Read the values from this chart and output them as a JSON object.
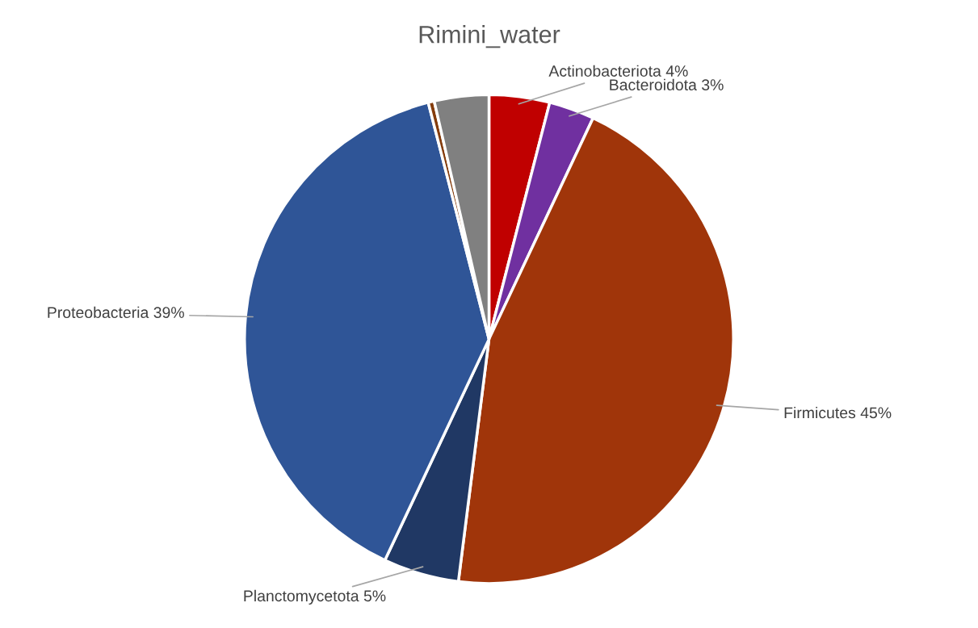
{
  "chart_data": {
    "type": "pie",
    "title": "Rimini_water",
    "categories": [
      "Actinobacteriota",
      "Bacteroidota",
      "Firmicutes",
      "Planctomycetota",
      "Proteobacteria",
      null,
      null
    ],
    "values": [
      4,
      3,
      45,
      5,
      39,
      0.4,
      3.6
    ],
    "value_labels": [
      "4%",
      "3%",
      "45%",
      "5%",
      "39%",
      null,
      null
    ],
    "colors": [
      "#c00000",
      "#7030a0",
      "#a0350a",
      "#203864",
      "#2f5597",
      "#843c0c",
      "#808080"
    ],
    "legend": false
  }
}
